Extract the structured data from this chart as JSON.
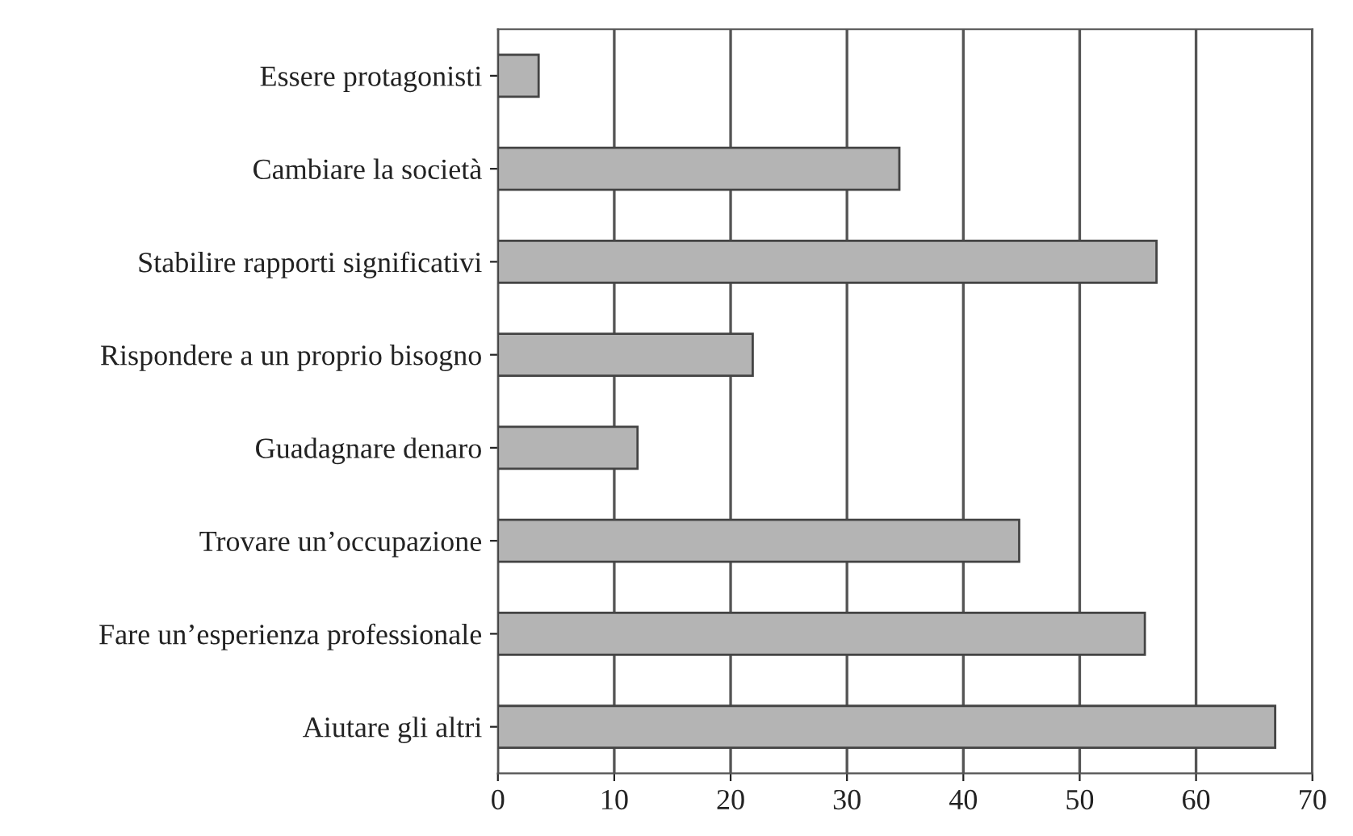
{
  "chart_data": {
    "type": "bar",
    "orientation": "horizontal",
    "categories": [
      "Essere protagonisti",
      "Cambiare la società",
      "Stabilire rapporti significativi",
      "Rispondere a un proprio bisogno",
      "Guadagnare denaro",
      "Trovare un’occupazione",
      "Fare un’esperienza professionale",
      "Aiutare gli altri"
    ],
    "values": [
      3.5,
      34.5,
      56.6,
      21.9,
      12,
      44.8,
      55.6,
      66.8
    ],
    "color": "#b4b4b4",
    "xlim": [
      0,
      70
    ],
    "xticks": [
      0,
      10,
      20,
      30,
      40,
      50,
      60,
      70
    ],
    "grid": "x"
  }
}
